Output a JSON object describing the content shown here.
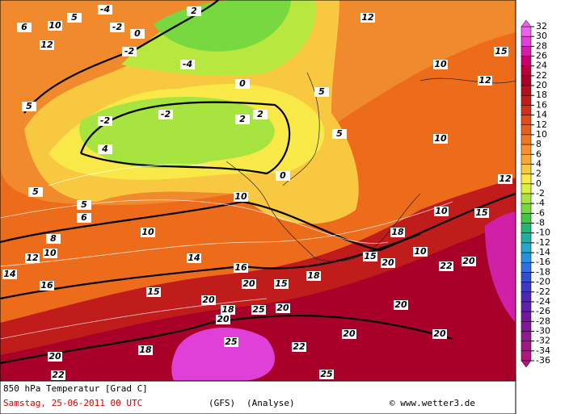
{
  "map": {
    "title": "850 hPa Temperatur [Grad C]",
    "date": "Samstag, 25-06-2011  00 UTC",
    "model": "(GFS)",
    "run": "(Analyse)",
    "credit": "© www.wetter3.de",
    "colorbar": {
      "ticks": [
        32,
        30,
        28,
        26,
        24,
        22,
        20,
        18,
        16,
        14,
        12,
        10,
        8,
        6,
        4,
        2,
        0,
        -2,
        -4,
        -6,
        -8,
        -10,
        -12,
        -14,
        -16,
        -18,
        -20,
        -22,
        -24,
        -26,
        -28,
        -30,
        -32,
        -34,
        -36
      ],
      "colors": [
        "#f060f0",
        "#e040d8",
        "#d020a8",
        "#c80068",
        "#b8003c",
        "#a80028",
        "#b01020",
        "#c01c1c",
        "#d0301c",
        "#e04c1c",
        "#e8601c",
        "#f07820",
        "#f89030",
        "#f8a838",
        "#f8c840",
        "#f8e848",
        "#d8f040",
        "#a8e440",
        "#78d840",
        "#40c840",
        "#20b878",
        "#20b0a8",
        "#20a8d0",
        "#2890e0",
        "#3070e0",
        "#3050d0",
        "#4038c0",
        "#5028b0",
        "#6020a8",
        "#7018a0",
        "#801898",
        "#901890",
        "#a01888",
        "#b01880"
      ]
    },
    "contour_labels": [
      10,
      5,
      12,
      6,
      -4,
      -2,
      0,
      -2,
      -4,
      2,
      12,
      15,
      10,
      12,
      10,
      5,
      -2,
      -2,
      0,
      2,
      2,
      5,
      5,
      0,
      10,
      12,
      5,
      5,
      4,
      6,
      10,
      8,
      10,
      15,
      10,
      10,
      12,
      15,
      14,
      14,
      18,
      15,
      15,
      16,
      20,
      20,
      20,
      16,
      18,
      20,
      25,
      18,
      25,
      22,
      20,
      22,
      20,
      20,
      20,
      20,
      25,
      18,
      22,
      20
    ]
  }
}
